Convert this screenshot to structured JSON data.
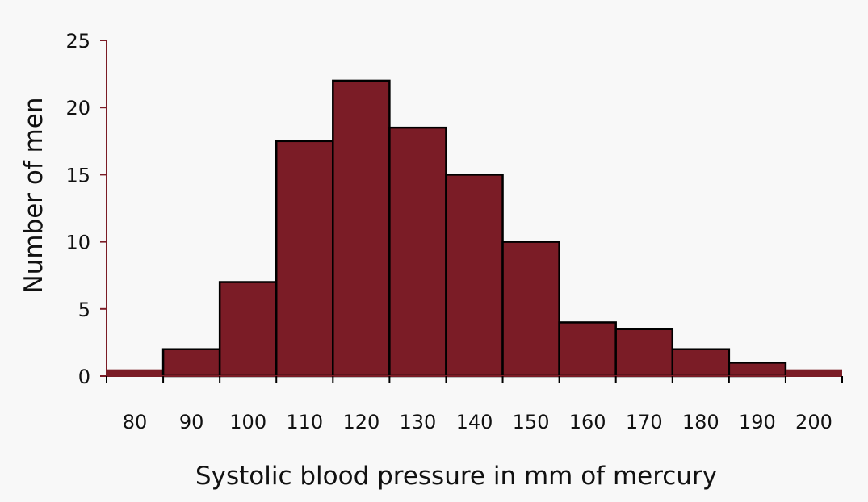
{
  "chart_data": {
    "type": "bar",
    "title": "",
    "xlabel": "Systolic blood pressure in mm of mercury",
    "ylabel": "Number of men",
    "categories": [
      "80",
      "90",
      "100",
      "110",
      "120",
      "130",
      "140",
      "150",
      "160",
      "170",
      "180",
      "190",
      "200"
    ],
    "values": [
      0.5,
      2,
      7,
      17.5,
      22,
      18.5,
      15,
      10,
      4,
      3.5,
      2,
      1,
      0.5
    ],
    "ylim": [
      0,
      25
    ],
    "yticks": [
      "0",
      "5",
      "10",
      "15",
      "20",
      "25"
    ],
    "grid": false,
    "colors": {
      "bar_fill": "#7b1c26",
      "bar_stroke": "#000000",
      "axis": "#7b1c26",
      "text": "#111111",
      "background": "#f8f8f8"
    }
  }
}
